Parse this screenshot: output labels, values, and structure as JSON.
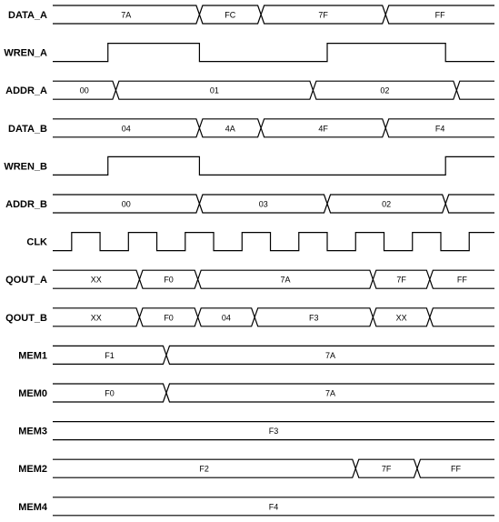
{
  "diagram": {
    "signals": [
      {
        "name": "DATA_A",
        "kind": "bus",
        "segments": [
          {
            "start": 0,
            "end": 9.3,
            "value": "7A"
          },
          {
            "start": 9.3,
            "end": 13.2,
            "value": "FC"
          },
          {
            "start": 13.2,
            "end": 21.1,
            "value": "7F"
          },
          {
            "start": 21.1,
            "end": 28,
            "value": "FF"
          }
        ]
      },
      {
        "name": "WREN_A",
        "kind": "bit",
        "initial": 0,
        "transitions": [
          3.5,
          9.3,
          17.4,
          24.9
        ]
      },
      {
        "name": "ADDR_A",
        "kind": "bus",
        "segments": [
          {
            "start": 0,
            "end": 4,
            "value": "00"
          },
          {
            "start": 4,
            "end": 16.5,
            "value": "01"
          },
          {
            "start": 16.5,
            "end": 25.6,
            "value": "02"
          },
          {
            "start": 25.6,
            "end": 28,
            "value": ""
          }
        ]
      },
      {
        "name": "DATA_B",
        "kind": "bus",
        "segments": [
          {
            "start": 0,
            "end": 9.3,
            "value": "04"
          },
          {
            "start": 9.3,
            "end": 13.2,
            "value": "4A"
          },
          {
            "start": 13.2,
            "end": 21.1,
            "value": "4F"
          },
          {
            "start": 21.1,
            "end": 28,
            "value": "F4"
          }
        ]
      },
      {
        "name": "WREN_B",
        "kind": "bit",
        "initial": 0,
        "transitions": [
          3.5,
          9.3,
          24.9
        ]
      },
      {
        "name": "ADDR_B",
        "kind": "bus",
        "segments": [
          {
            "start": 0,
            "end": 9.3,
            "value": "00"
          },
          {
            "start": 9.3,
            "end": 17.4,
            "value": "03"
          },
          {
            "start": 17.4,
            "end": 24.9,
            "value": "02"
          },
          {
            "start": 24.9,
            "end": 28,
            "value": ""
          }
        ]
      },
      {
        "name": "CLK",
        "kind": "clock",
        "initial": 0,
        "first_edge": 1.2,
        "half_period": 1.8
      },
      {
        "name": "QOUT_A",
        "kind": "bus",
        "segments": [
          {
            "start": 0,
            "end": 5.5,
            "value": "XX"
          },
          {
            "start": 5.5,
            "end": 9.2,
            "value": "F0"
          },
          {
            "start": 9.2,
            "end": 20.3,
            "value": "7A"
          },
          {
            "start": 20.3,
            "end": 23.9,
            "value": "7F"
          },
          {
            "start": 23.9,
            "end": 28,
            "value": "FF"
          }
        ]
      },
      {
        "name": "QOUT_B",
        "kind": "bus",
        "segments": [
          {
            "start": 0,
            "end": 5.5,
            "value": "XX"
          },
          {
            "start": 5.5,
            "end": 9.2,
            "value": "F0"
          },
          {
            "start": 9.2,
            "end": 12.8,
            "value": "04"
          },
          {
            "start": 12.8,
            "end": 20.3,
            "value": "F3"
          },
          {
            "start": 20.3,
            "end": 23.9,
            "value": "XX"
          },
          {
            "start": 23.9,
            "end": 28,
            "value": ""
          }
        ]
      },
      {
        "name": "MEM1",
        "kind": "bus",
        "segments": [
          {
            "start": 0,
            "end": 7.2,
            "value": "F1"
          },
          {
            "start": 7.2,
            "end": 28,
            "value": "7A"
          }
        ]
      },
      {
        "name": "MEM0",
        "kind": "bus",
        "segments": [
          {
            "start": 0,
            "end": 7.2,
            "value": "F0"
          },
          {
            "start": 7.2,
            "end": 28,
            "value": "7A"
          }
        ]
      },
      {
        "name": "MEM3",
        "kind": "bus",
        "segments": [
          {
            "start": 0,
            "end": 28,
            "value": "F3"
          }
        ]
      },
      {
        "name": "MEM2",
        "kind": "bus",
        "segments": [
          {
            "start": 0,
            "end": 19.2,
            "value": "F2"
          },
          {
            "start": 19.2,
            "end": 23.1,
            "value": "7F"
          },
          {
            "start": 23.1,
            "end": 28,
            "value": "FF"
          }
        ]
      },
      {
        "name": "MEM4",
        "kind": "bus",
        "segments": [
          {
            "start": 0,
            "end": 28,
            "value": "F4"
          }
        ]
      }
    ]
  }
}
